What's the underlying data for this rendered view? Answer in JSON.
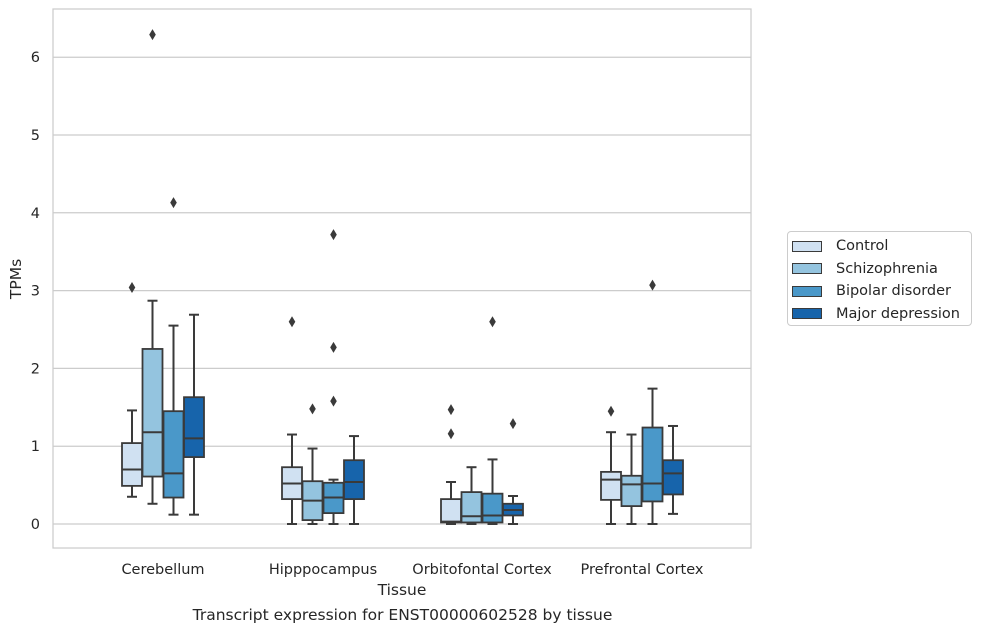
{
  "caption": "Transcript expression for ENST00000602528 by tissue",
  "colors": {
    "Control": "#d0e1f2",
    "Schizophrenia": "#94c4df",
    "Bipolar disorder": "#4a98c9",
    "Major depression": "#1764ab",
    "edge": "#3a3a3a",
    "grid": "#cccccc"
  },
  "chart_data": {
    "type": "box",
    "title": "",
    "xlabel": "Tissue",
    "ylabel": "TPMs",
    "ylim": [
      -0.3,
      6.6
    ],
    "yticks": [
      0,
      1,
      2,
      3,
      4,
      5,
      6
    ],
    "grid": "horizontal",
    "legend_position": "right",
    "categories": [
      "Cerebellum",
      "Hipppocampus",
      "Orbitofontal Cortex",
      "Prefrontal Cortex"
    ],
    "series": [
      {
        "name": "Control",
        "boxes": [
          {
            "whislo": 0.35,
            "q1": 0.49,
            "med": 0.7,
            "q3": 1.04,
            "whishi": 1.46,
            "fliers": [
              3.04
            ]
          },
          {
            "whislo": 0.0,
            "q1": 0.32,
            "med": 0.52,
            "q3": 0.73,
            "whishi": 1.15,
            "fliers": [
              2.6
            ]
          },
          {
            "whislo": 0.0,
            "q1": 0.02,
            "med": 0.03,
            "q3": 0.32,
            "whishi": 0.54,
            "fliers": [
              1.16,
              1.47
            ]
          },
          {
            "whislo": 0.0,
            "q1": 0.31,
            "med": 0.57,
            "q3": 0.67,
            "whishi": 1.18,
            "fliers": [
              1.45
            ]
          }
        ]
      },
      {
        "name": "Schizophrenia",
        "boxes": [
          {
            "whislo": 0.26,
            "q1": 0.61,
            "med": 1.18,
            "q3": 2.25,
            "whishi": 2.87,
            "fliers": [
              6.29
            ]
          },
          {
            "whislo": 0.0,
            "q1": 0.05,
            "med": 0.3,
            "q3": 0.55,
            "whishi": 0.97,
            "fliers": [
              1.48
            ]
          },
          {
            "whislo": 0.0,
            "q1": 0.02,
            "med": 0.1,
            "q3": 0.41,
            "whishi": 0.73,
            "fliers": []
          },
          {
            "whislo": 0.0,
            "q1": 0.23,
            "med": 0.51,
            "q3": 0.62,
            "whishi": 1.15,
            "fliers": []
          }
        ]
      },
      {
        "name": "Bipolar disorder",
        "boxes": [
          {
            "whislo": 0.12,
            "q1": 0.34,
            "med": 0.65,
            "q3": 1.45,
            "whishi": 2.55,
            "fliers": [
              4.13
            ]
          },
          {
            "whislo": 0.0,
            "q1": 0.14,
            "med": 0.34,
            "q3": 0.53,
            "whishi": 0.57,
            "fliers": [
              1.58,
              2.27,
              3.72
            ]
          },
          {
            "whislo": 0.0,
            "q1": 0.02,
            "med": 0.11,
            "q3": 0.39,
            "whishi": 0.83,
            "fliers": [
              2.6
            ]
          },
          {
            "whislo": 0.0,
            "q1": 0.29,
            "med": 0.52,
            "q3": 1.24,
            "whishi": 1.74,
            "fliers": [
              3.07
            ]
          }
        ]
      },
      {
        "name": "Major depression",
        "boxes": [
          {
            "whislo": 0.12,
            "q1": 0.86,
            "med": 1.1,
            "q3": 1.63,
            "whishi": 2.69,
            "fliers": []
          },
          {
            "whislo": 0.0,
            "q1": 0.32,
            "med": 0.54,
            "q3": 0.82,
            "whishi": 1.13,
            "fliers": []
          },
          {
            "whislo": 0.0,
            "q1": 0.11,
            "med": 0.18,
            "q3": 0.26,
            "whishi": 0.36,
            "fliers": [
              1.29
            ]
          },
          {
            "whislo": 0.13,
            "q1": 0.38,
            "med": 0.65,
            "q3": 0.82,
            "whishi": 1.26,
            "fliers": []
          }
        ]
      }
    ]
  }
}
